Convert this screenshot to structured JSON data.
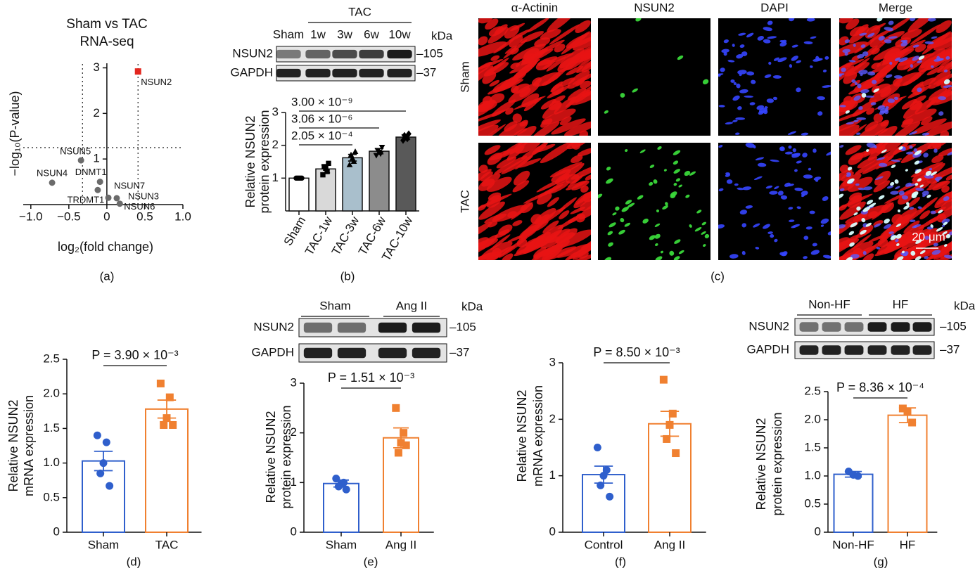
{
  "chart_data": [
    {
      "type": "scatter",
      "panel": "(a)",
      "title": [
        "Sham vs TAC",
        "RNA-seq"
      ],
      "xlabel": "log₂(fold change)",
      "ylabel": "−log₁₀(P-value)",
      "labels": [
        "NSUN2",
        "NSUN5",
        "NSUN4",
        "DNMT1",
        "TRDMT1",
        "NSUN7",
        "NSUN3",
        "NSUN6"
      ],
      "x": [
        0.41,
        -0.34,
        -0.72,
        -0.09,
        -0.12,
        0.02,
        0.13,
        0.17
      ],
      "y": [
        2.92,
        0.97,
        0.48,
        0.5,
        0.32,
        0.15,
        0.14,
        0.02
      ],
      "colors": [
        "#e3261f",
        "#6b6b6b",
        "#6b6b6b",
        "#6b6b6b",
        "#6b6b6b",
        "#6b6b6b",
        "#6b6b6b",
        "#6b6b6b"
      ],
      "markers": [
        "square",
        "circle",
        "circle",
        "circle",
        "circle",
        "circle",
        "circle",
        "circle"
      ],
      "xlim": [
        -1.1,
        1.0
      ],
      "ylim": [
        0,
        3.1
      ],
      "xticks": [
        {
          "value": -1,
          "label": "−1.0"
        },
        {
          "value": -0.5,
          "label": "−0.5"
        },
        0,
        0.5,
        {
          "value": 1,
          "label": "1.0"
        }
      ],
      "yticks": [
        1,
        2,
        3
      ],
      "vlines": [
        -0.32,
        0.41
      ],
      "hline": 1.25
    },
    {
      "type": "bar",
      "panel": "(b)",
      "style": "filled",
      "blot": {
        "groups": [
          "TAC"
        ],
        "lanes": [
          "Sham",
          "1w",
          "3w",
          "6w",
          "10w"
        ],
        "rows": [
          "NSUN2",
          "GAPDH"
        ],
        "sizes": [
          "–105",
          "–37"
        ],
        "unit": "kDa"
      },
      "categories": [
        "Sham",
        "TAC-1w",
        "TAC-3w",
        "TAC-6w",
        "TAC-10w"
      ],
      "values": [
        1.0,
        1.28,
        1.62,
        1.82,
        2.25
      ],
      "errors": [
        0.02,
        0.12,
        0.1,
        0.08,
        0.07
      ],
      "points": [
        [
          1.0,
          1.0,
          1.0,
          1.0,
          1.0
        ],
        [
          1.1,
          1.2,
          1.3,
          1.35,
          1.45
        ],
        [
          1.4,
          1.5,
          1.6,
          1.7,
          1.8
        ],
        [
          1.7,
          1.75,
          1.8,
          1.85,
          1.95
        ],
        [
          2.15,
          2.2,
          2.25,
          2.3,
          2.35
        ]
      ],
      "colors": [
        "#ffffff",
        "#d9d9d9",
        "#a9bfcc",
        "#8c8c8c",
        "#595959"
      ],
      "point_color": "#000000",
      "point_markers": [
        "circle",
        "square",
        "triangle",
        "triangle-down",
        "diamond"
      ],
      "ylabel": [
        "Relative NSUN2",
        "protein expression"
      ],
      "ylim": [
        0,
        3
      ],
      "yticks": [
        1,
        2,
        3
      ],
      "annotations": [
        "2.05 × 10⁻⁴",
        "3.06 × 10⁻⁶",
        "3.00 × 10⁻⁹"
      ]
    },
    {
      "type": "bar",
      "panel": "(d)",
      "style": "outline",
      "categories": [
        "Sham",
        "TAC"
      ],
      "values": [
        1.03,
        1.78
      ],
      "errors": [
        0.14,
        0.13
      ],
      "points": [
        [
          1.4,
          1.3,
          1.0,
          0.85,
          0.67
        ],
        [
          2.15,
          1.95,
          1.65,
          1.55,
          1.55
        ]
      ],
      "colors": [
        "#2f5fcc",
        "#f08030"
      ],
      "point_markers": [
        "circle",
        "square"
      ],
      "ylabel": [
        "Relative NSUN2",
        "mRNA expression"
      ],
      "ylim": [
        0,
        2.5
      ],
      "yticks": [
        0,
        0.5,
        {
          "value": 1,
          "label": "1.0"
        },
        1.5,
        {
          "value": 2,
          "label": "2.0"
        },
        2.5
      ],
      "annotations": [
        "P = 3.90 × 10⁻³"
      ]
    },
    {
      "type": "bar",
      "panel": "(e)",
      "style": "outline",
      "blot": {
        "groups": [
          "Sham",
          "Ang II"
        ],
        "rows": [
          "NSUN2",
          "GAPDH"
        ],
        "sizes": [
          "–105",
          "–37"
        ],
        "unit": "kDa"
      },
      "categories": [
        "Sham",
        "Ang II"
      ],
      "values": [
        0.98,
        1.9
      ],
      "errors": [
        0.07,
        0.2
      ],
      "points": [
        [
          1.08,
          1.0,
          0.97,
          0.92,
          0.86
        ],
        [
          2.5,
          2.0,
          1.8,
          1.6,
          1.75
        ]
      ],
      "colors": [
        "#2f5fcc",
        "#f08030"
      ],
      "point_markers": [
        "circle",
        "square"
      ],
      "ylabel": [
        "Relative NSUN2",
        "protein expression"
      ],
      "ylim": [
        0,
        3
      ],
      "yticks": [
        0,
        1,
        2,
        3
      ],
      "annotations": [
        "P = 1.51 × 10⁻³"
      ]
    },
    {
      "type": "bar",
      "panel": "(f)",
      "style": "outline",
      "categories": [
        "Control",
        "Ang II"
      ],
      "values": [
        1.02,
        1.92
      ],
      "errors": [
        0.15,
        0.22
      ],
      "points": [
        [
          1.5,
          1.1,
          1.0,
          0.83,
          0.63
        ],
        [
          2.7,
          2.1,
          1.9,
          1.65,
          1.4
        ]
      ],
      "colors": [
        "#2f5fcc",
        "#f08030"
      ],
      "point_markers": [
        "circle",
        "square"
      ],
      "ylabel": [
        "Relative NSUN2",
        "mRNA expression"
      ],
      "ylim": [
        0,
        3
      ],
      "yticks": [
        0,
        1,
        2,
        3
      ],
      "annotations": [
        "P = 8.50 × 10⁻³"
      ]
    },
    {
      "type": "bar",
      "panel": "(g)",
      "style": "outline",
      "blot": {
        "groups": [
          "Non-HF",
          "HF"
        ],
        "rows": [
          "NSUN2",
          "GAPDH"
        ],
        "sizes": [
          "–105",
          "–37"
        ],
        "unit": "kDa"
      },
      "categories": [
        "Non-HF",
        "HF"
      ],
      "values": [
        1.03,
        2.08
      ],
      "errors": [
        0.05,
        0.13
      ],
      "points": [
        [
          1.08,
          1.02,
          1.0
        ],
        [
          2.2,
          2.15,
          1.95
        ]
      ],
      "colors": [
        "#2f5fcc",
        "#f08030"
      ],
      "point_markers": [
        "circle",
        "square"
      ],
      "ylabel": [
        "Relative NSUN2",
        "protein expression"
      ],
      "ylim": [
        0,
        2.5
      ],
      "yticks": [
        0,
        0.5,
        {
          "value": 1,
          "label": "1.0"
        },
        1.5,
        {
          "value": 2,
          "label": "2.0"
        },
        2.5
      ],
      "annotations": [
        "P = 8.36 × 10⁻⁴"
      ]
    }
  ],
  "image_panel": {
    "panel": "(c)",
    "columns": [
      "α-Actinin",
      "NSUN2",
      "DAPI",
      "Merge"
    ],
    "rows": [
      "Sham",
      "TAC"
    ],
    "scale_bar": "20 μm"
  }
}
